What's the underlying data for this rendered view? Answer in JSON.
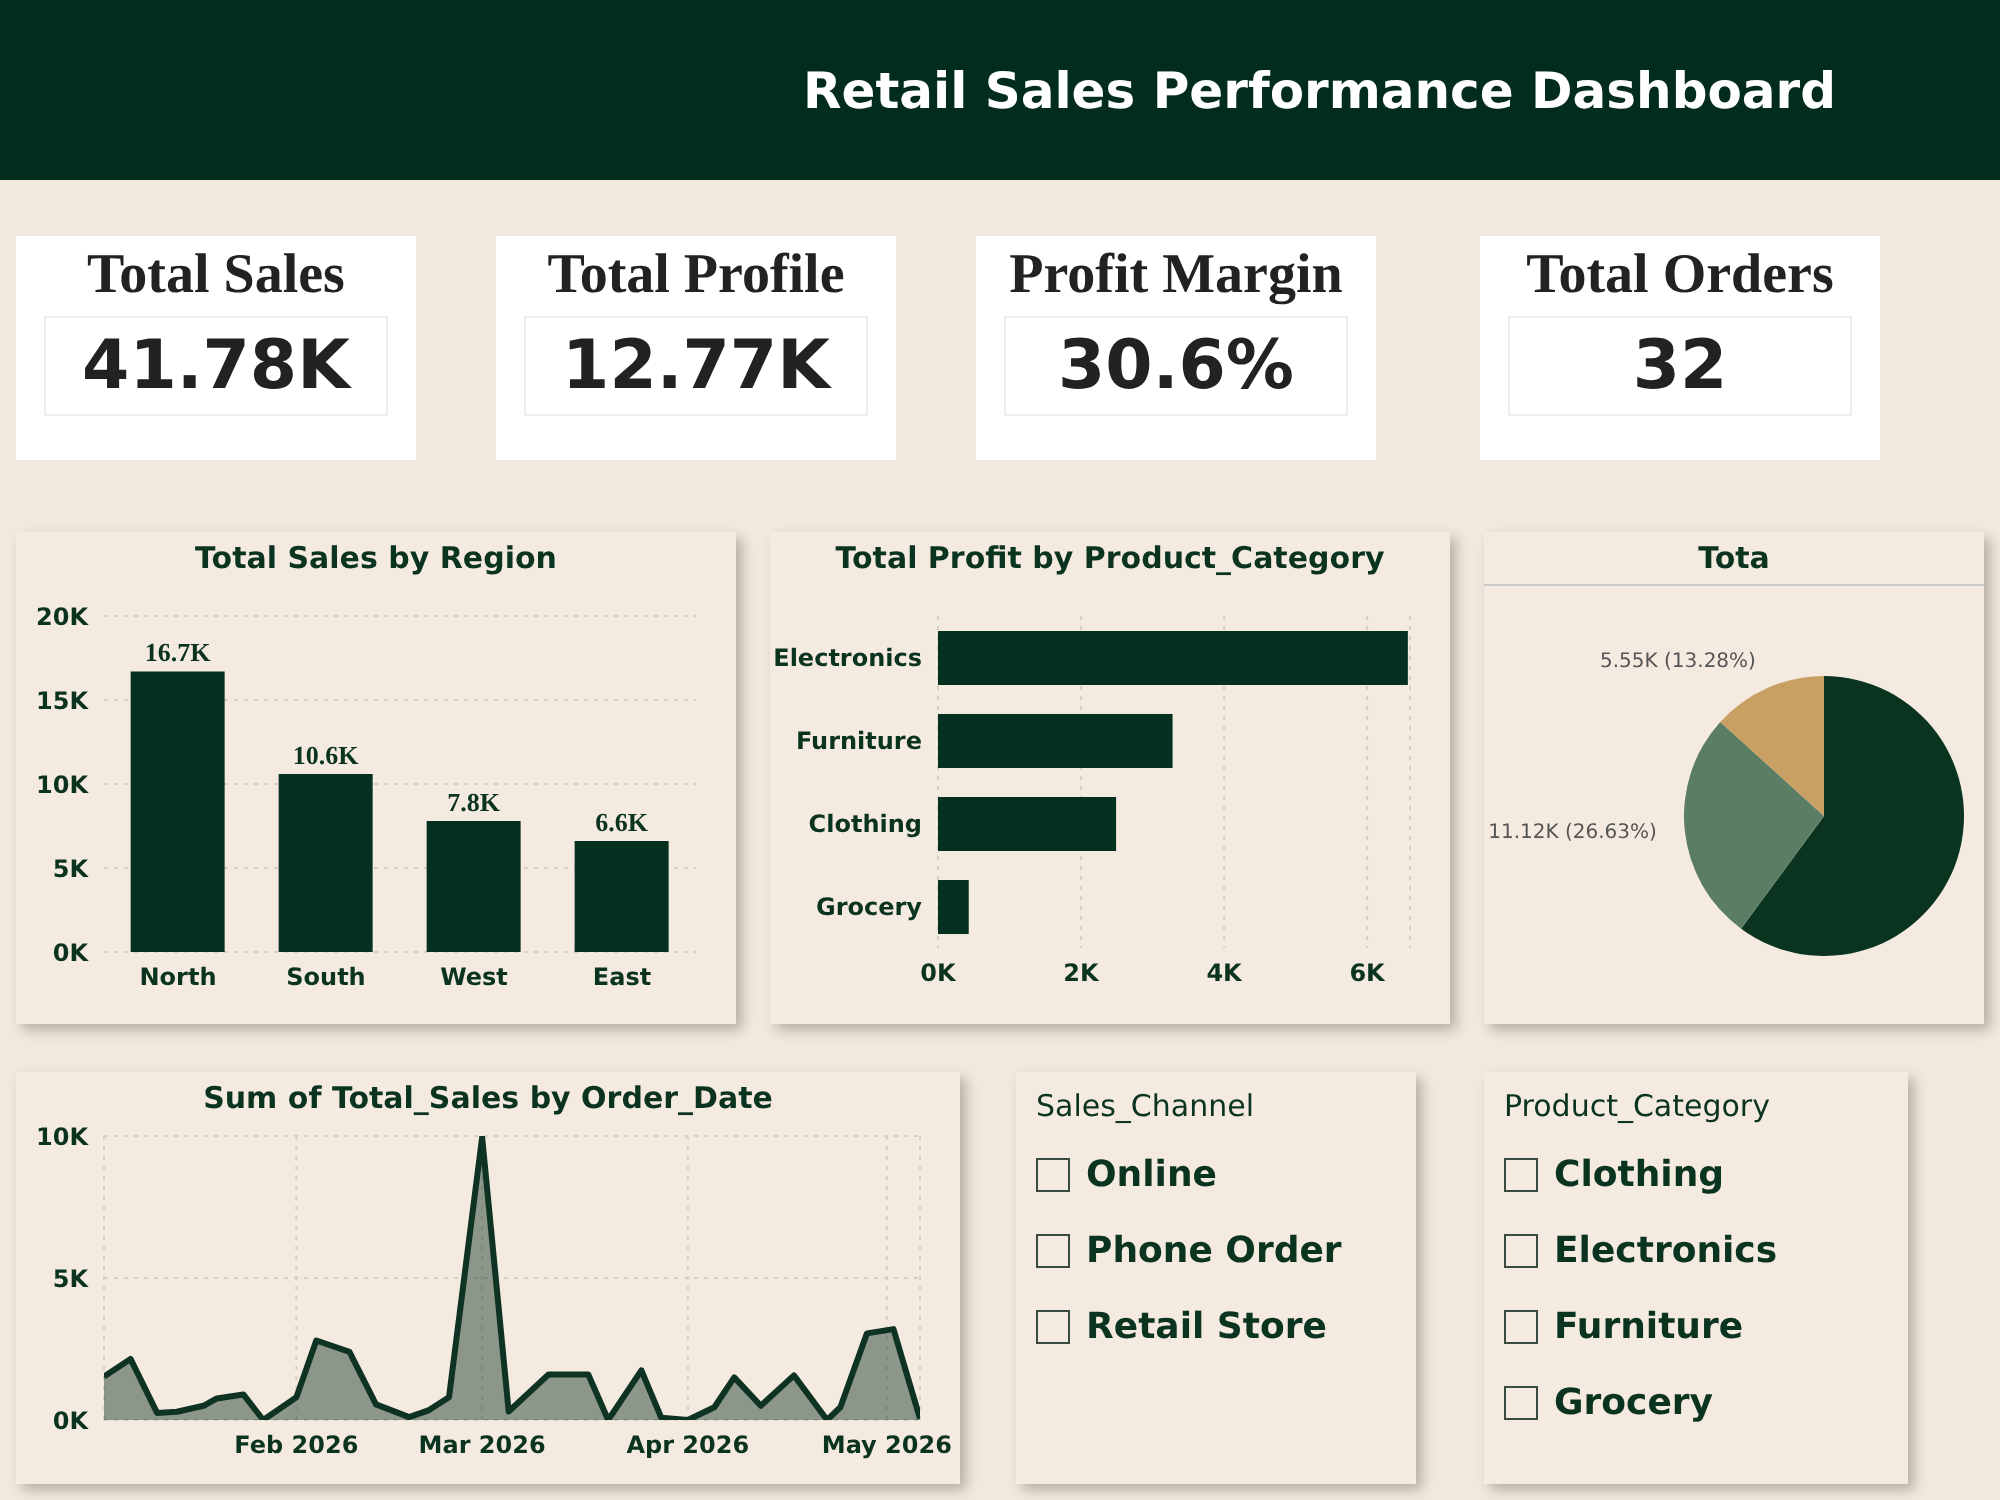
{
  "chart_data": [
    {
      "type": "other",
      "title": "Retail Sales Performance Dashboard"
    },
    {
      "type": "other",
      "title": "Total Sales",
      "annotations": [
        "41.78K"
      ]
    },
    {
      "type": "other",
      "title": "Total Profile",
      "annotations": [
        "12.77K"
      ]
    },
    {
      "type": "other",
      "title": "Profit Margin",
      "annotations": [
        "30.6%"
      ]
    },
    {
      "type": "other",
      "title": "Total Orders",
      "annotations": [
        "32"
      ]
    },
    {
      "type": "bar",
      "title": "Total Sales by Region",
      "categories": [
        "North",
        "South",
        "West",
        "East"
      ],
      "values": [
        16.7,
        10.6,
        7.8,
        6.6
      ],
      "value_labels": [
        "16.7K",
        "10.6K",
        "7.8K",
        "6.6K"
      ],
      "color": "#03301f",
      "ylim": [
        0,
        20
      ],
      "yticks": [
        {
          "value": 0,
          "label": "0K"
        },
        {
          "value": 5,
          "label": "5K"
        },
        {
          "value": 10,
          "label": "10K"
        },
        {
          "value": 15,
          "label": "15K"
        },
        {
          "value": 20,
          "label": "20K"
        }
      ],
      "grid": "y"
    },
    {
      "type": "bar",
      "orientation": "horizontal",
      "title": "Total Profit by Product_Category",
      "categories": [
        "Electronics",
        "Furniture",
        "Clothing",
        "Grocery"
      ],
      "values": [
        6.57,
        3.28,
        2.49,
        0.43
      ],
      "color": "#03301f",
      "xlim": [
        0,
        6.6
      ],
      "xticks": [
        {
          "value": 0,
          "label": "0K"
        },
        {
          "value": 2,
          "label": "2K"
        },
        {
          "value": 4,
          "label": "4K"
        },
        {
          "value": 6,
          "label": "6K"
        }
      ],
      "grid": "x"
    },
    {
      "type": "pie",
      "title": "Tota",
      "categories": [
        null,
        null,
        null
      ],
      "values": [
        60.09,
        26.63,
        13.28
      ],
      "colors": [
        "#0a3320",
        "#5a7d64",
        "#c9a064"
      ],
      "value_labels": [
        null,
        "11.12K (26.63%)",
        "5.55K (13.28%)"
      ]
    },
    {
      "type": "area",
      "title": "Sum of Total_Sales by Order_Date",
      "color": "#0e3322",
      "x": [
        "2026-01-03",
        "2026-01-07",
        "2026-01-11",
        "2026-01-14",
        "2026-01-18",
        "2026-01-20",
        "2026-01-24",
        "2026-01-27",
        "2026-02-01",
        "2026-02-04",
        "2026-02-09",
        "2026-02-13",
        "2026-02-18",
        "2026-02-21",
        "2026-02-24",
        "2026-03-01",
        "2026-03-05",
        "2026-03-11",
        "2026-03-17",
        "2026-03-20",
        "2026-03-25",
        "2026-03-28",
        "2026-04-01",
        "2026-04-05",
        "2026-04-08",
        "2026-04-12",
        "2026-04-17",
        "2026-04-22",
        "2026-04-24",
        "2026-04-28",
        "2026-05-02",
        "2026-05-06"
      ],
      "values": [
        1.53,
        2.15,
        0.25,
        0.29,
        0.5,
        0.76,
        0.9,
        0,
        0.8,
        2.8,
        2.4,
        0.55,
        0.1,
        0.35,
        0.8,
        9.95,
        0.3,
        1.6,
        1.6,
        0,
        1.75,
        0.08,
        0,
        0.45,
        1.5,
        0.5,
        1.57,
        0,
        0.45,
        3.05,
        3.2,
        0.05
      ],
      "xlim": [
        "2026-01-03",
        "2026-05-06"
      ],
      "xticks": [
        {
          "value": "2026-02-01",
          "label": "Feb 2026"
        },
        {
          "value": "2026-03-01",
          "label": "Mar 2026"
        },
        {
          "value": "2026-04-01",
          "label": "Apr 2026"
        },
        {
          "value": "2026-05-01",
          "label": "May 2026"
        }
      ],
      "ylim": [
        0,
        10
      ],
      "yticks": [
        {
          "value": 0,
          "label": "0K"
        },
        {
          "value": 5,
          "label": "5K"
        },
        {
          "value": 10,
          "label": "10K"
        }
      ],
      "grid": true
    },
    {
      "type": "other",
      "title": "Sales_Channel",
      "categories": [
        "Online",
        "Phone Order",
        "Retail Store"
      ]
    },
    {
      "type": "other",
      "title": "Product_Category",
      "categories": [
        "Clothing",
        "Electronics",
        "Furniture",
        "Grocery"
      ]
    }
  ]
}
